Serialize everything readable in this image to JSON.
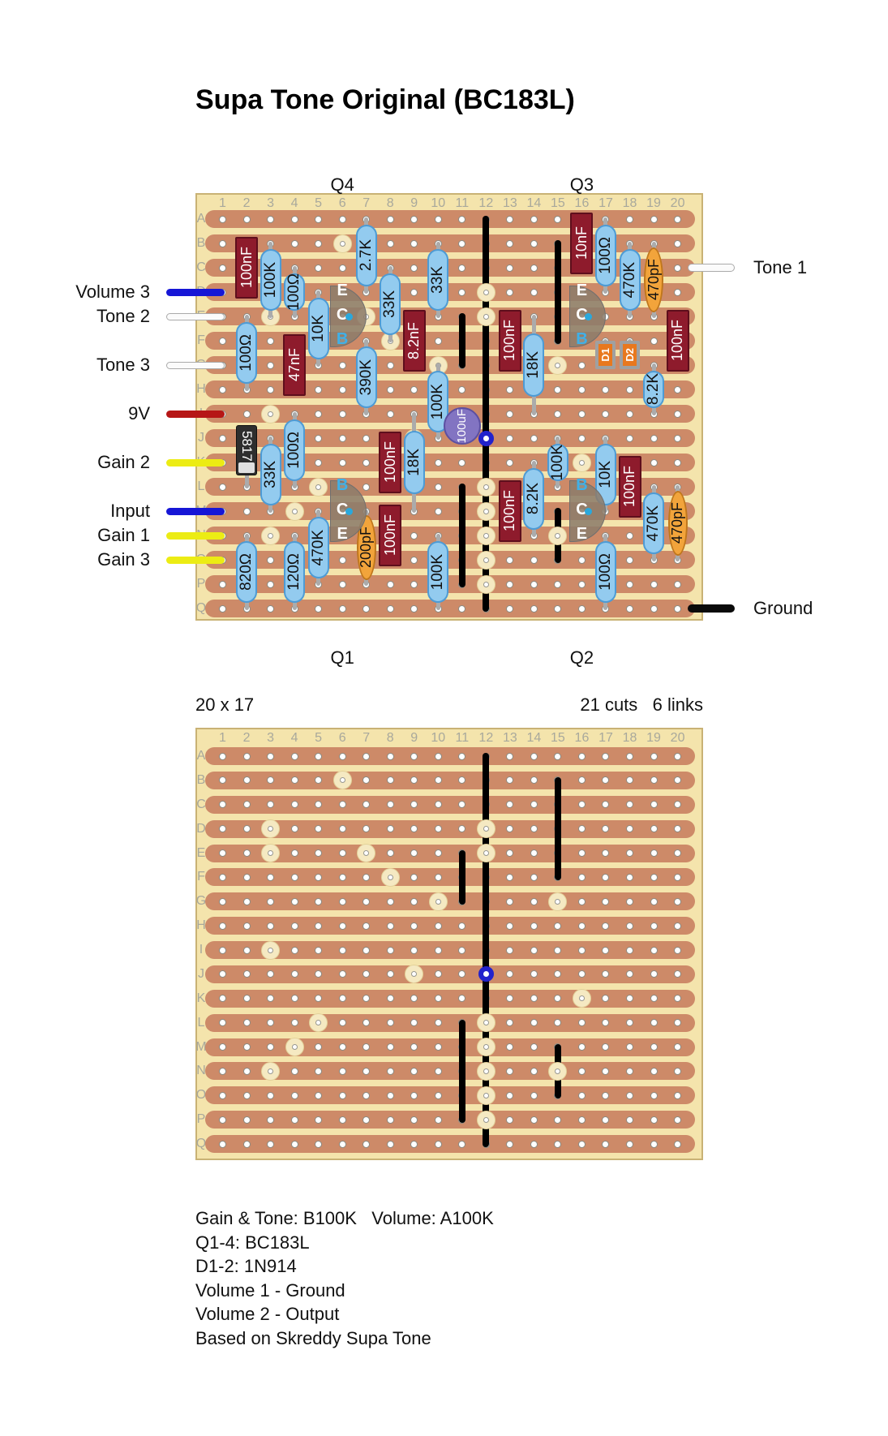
{
  "title": "Supa Tone Original (BC183L)",
  "grid": {
    "columns": 20,
    "row_letters": "ABCDEFGHIJKLMNOPQ"
  },
  "palette": {
    "board_bg": "#F4E4AC",
    "board_border": "#C9B275",
    "strip": "#CD8A68",
    "hole_fill": "#FFFFFF",
    "hole_ring": "#8A8A82",
    "cut_fill": "#F5E9C2",
    "cut_ring": "#E3D29A",
    "link": "#000000",
    "junction_blue": "#2222CC",
    "lead": "#ABABAB",
    "resistor_fill": "#93CBEF",
    "resistor_border": "#4D9BD5",
    "resistor_text": "#111111",
    "film_fill": "#8E1B2C",
    "film_border": "#5E0E1C",
    "film_text": "#FFFFFF",
    "disc_fill": "#F2A43B",
    "disc_border": "#C0771C",
    "disc_text": "#111111",
    "electro_fill": "#8274C2",
    "electro_border": "#5C50A2",
    "electro_text": "#FFFFFF",
    "diode_body": "#2E2E2E",
    "diode_band": "#E0E0E0",
    "diode_text": "#FFFFFF",
    "glass_outer": "#A0A0A0",
    "glass_fill": "#E8781E",
    "glass_text": "#FFFFFF",
    "transistor_fill": "rgba(140,124,107,0.87)",
    "transistor_border": "#6F6F6F",
    "pin_white": "#FFFFFF",
    "pin_blue": "#3FB0E8",
    "collector_dot": "#2AA8DC",
    "grid_label": "#A8A89C"
  },
  "top_board": {
    "top_labels": [
      {
        "text": "Q4",
        "col": 6
      },
      {
        "text": "Q3",
        "col": 16
      }
    ],
    "bottom_labels": [
      {
        "text": "Q1",
        "col": 6
      },
      {
        "text": "Q2",
        "col": 16
      }
    ],
    "resistors": [
      {
        "value": "100K",
        "col": 3,
        "rows": "B-E"
      },
      {
        "value": "100Ω",
        "col": 4,
        "rows": "C-E"
      },
      {
        "value": "10K",
        "col": 5,
        "rows": "D-G"
      },
      {
        "value": "2.7K",
        "col": 7,
        "rows": "A-D"
      },
      {
        "value": "33K",
        "col": 8,
        "rows": "C-F"
      },
      {
        "value": "33K",
        "col": 10,
        "rows": "B-E"
      },
      {
        "value": "100Ω",
        "col": 2,
        "rows": "E-H"
      },
      {
        "value": "390K",
        "col": 7,
        "rows": "F-I"
      },
      {
        "value": "100K",
        "col": 10,
        "rows": "G-J"
      },
      {
        "value": "18K",
        "col": 14,
        "rows": "E-I"
      },
      {
        "value": "100Ω",
        "col": 17,
        "rows": "A-D"
      },
      {
        "value": "470K",
        "col": 18,
        "rows": "B-E"
      },
      {
        "value": "8.2K",
        "col": 19,
        "rows": "G-I"
      },
      {
        "value": "18K",
        "col": 9,
        "rows": "I-M"
      },
      {
        "value": "33K",
        "col": 3,
        "rows": "J-M"
      },
      {
        "value": "100Ω",
        "col": 4,
        "rows": "I-L"
      },
      {
        "value": "100K",
        "col": 15,
        "rows": "J-L"
      },
      {
        "value": "10K",
        "col": 17,
        "rows": "J-M"
      },
      {
        "value": "8.2K",
        "col": 14,
        "rows": "K-N"
      },
      {
        "value": "470K",
        "col": 5,
        "rows": "M-P"
      },
      {
        "value": "100K",
        "col": 10,
        "rows": "N-Q"
      },
      {
        "value": "820Ω",
        "col": 2,
        "rows": "N-Q"
      },
      {
        "value": "120Ω",
        "col": 4,
        "rows": "N-Q"
      },
      {
        "value": "100Ω",
        "col": 17,
        "rows": "N-Q"
      },
      {
        "value": "470K",
        "col": 19,
        "rows": "L-O"
      }
    ],
    "film_caps": [
      {
        "value": "100nF",
        "col": 2,
        "rows": "B-D"
      },
      {
        "value": "47nF",
        "col": 4,
        "rows": "F-H"
      },
      {
        "value": "8.2nF",
        "col": 9,
        "rows": "E-G"
      },
      {
        "value": "100nF",
        "col": 13,
        "rows": "E-G"
      },
      {
        "value": "10nF",
        "col": 16,
        "rows": "A-C"
      },
      {
        "value": "100nF",
        "col": 20,
        "rows": "E-G"
      },
      {
        "value": "100nF",
        "col": 8,
        "rows": "J-L"
      },
      {
        "value": "100nF",
        "col": 13,
        "rows": "L-N"
      },
      {
        "value": "100nF",
        "col": 18,
        "rows": "K-M"
      },
      {
        "value": "100nF",
        "col": 8,
        "rows": "M-O"
      }
    ],
    "disc_caps": [
      {
        "value": "470pF",
        "col": 19,
        "rows": "B-E"
      },
      {
        "value": "200pF",
        "col": 7,
        "rows": "M-P"
      },
      {
        "value": "470pF",
        "col": 20,
        "rows": "L-O"
      }
    ],
    "electrolytic_caps": [
      {
        "value": "100uF",
        "col": 11,
        "rows": "I-J"
      }
    ],
    "diodes": [
      {
        "value": "5817",
        "col": 2,
        "rows": "J-L",
        "style": "schottky"
      },
      {
        "value": "D1",
        "col": 17,
        "rows": "F-G",
        "style": "signal"
      },
      {
        "value": "D2",
        "col": 18,
        "rows": "F-G",
        "style": "signal"
      }
    ],
    "transistors": [
      {
        "name": "Q4",
        "col": 6,
        "rows": "D-F",
        "pins": [
          "E",
          "C",
          "B"
        ]
      },
      {
        "name": "Q3",
        "col": 16,
        "rows": "D-F",
        "pins": [
          "E",
          "C",
          "B"
        ]
      },
      {
        "name": "Q1",
        "col": 6,
        "rows": "L-N",
        "pins": [
          "B",
          "C",
          "E"
        ]
      },
      {
        "name": "Q2",
        "col": 16,
        "rows": "L-N",
        "pins": [
          "B",
          "C",
          "E"
        ]
      }
    ],
    "wires_left": [
      {
        "label": "Volume 3",
        "row": "D",
        "color": "#1616D6",
        "white": false
      },
      {
        "label": "Tone 2",
        "row": "E",
        "color": "#FBFBFB",
        "white": true
      },
      {
        "label": "Tone 3",
        "row": "G",
        "color": "#FBFBFB",
        "white": true
      },
      {
        "label": "9V",
        "row": "I",
        "color": "#B61616",
        "white": false
      },
      {
        "label": "Gain 2",
        "row": "K",
        "color": "#ECEC14",
        "white": false
      },
      {
        "label": "Input",
        "row": "M",
        "color": "#1616D6",
        "white": false
      },
      {
        "label": "Gain 1",
        "row": "N",
        "color": "#ECEC14",
        "white": false
      },
      {
        "label": "Gain 3",
        "row": "O",
        "color": "#ECEC14",
        "white": false
      }
    ],
    "wires_right": [
      {
        "label": "Tone 1",
        "row": "C",
        "color": "#FBFBFB",
        "white": true
      },
      {
        "label": "Ground",
        "row": "Q",
        "color": "#0A0A0A",
        "white": false
      }
    ]
  },
  "cuts": [
    [
      6,
      "B"
    ],
    [
      3,
      "D"
    ],
    [
      12,
      "D"
    ],
    [
      3,
      "E"
    ],
    [
      7,
      "E"
    ],
    [
      12,
      "E"
    ],
    [
      8,
      "F"
    ],
    [
      10,
      "G"
    ],
    [
      15,
      "G"
    ],
    [
      3,
      "I"
    ],
    [
      9,
      "J"
    ],
    [
      16,
      "K"
    ],
    [
      5,
      "L"
    ],
    [
      12,
      "L"
    ],
    [
      4,
      "M"
    ],
    [
      12,
      "M"
    ],
    [
      3,
      "N"
    ],
    [
      12,
      "N"
    ],
    [
      15,
      "N"
    ],
    [
      12,
      "O"
    ],
    [
      12,
      "P"
    ]
  ],
  "links": [
    [
      12,
      "A",
      "J"
    ],
    [
      12,
      "J",
      "Q"
    ],
    [
      15,
      "B",
      "F"
    ],
    [
      11,
      "E",
      "G"
    ],
    [
      11,
      "L",
      "P"
    ],
    [
      15,
      "M",
      "O"
    ]
  ],
  "junction": {
    "col": 12,
    "row": "J"
  },
  "stats": {
    "size": "20 x 17",
    "cuts_links": "21 cuts   6 links"
  },
  "notes": [
    "Gain & Tone: B100K   Volume: A100K",
    "Q1-4: BC183L",
    "D1-2: 1N914",
    "Volume 1 - Ground",
    "Volume 2 - Output",
    "Based on Skreddy Supa Tone"
  ]
}
